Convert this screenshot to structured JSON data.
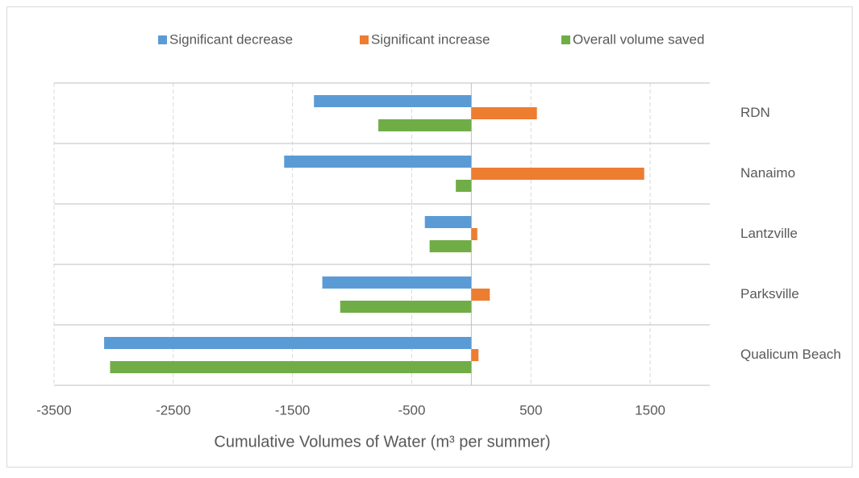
{
  "chart_data": {
    "type": "hbar",
    "x_label": "Cumulative Volumes of Water (m³ per summer)",
    "categories": [
      "RDN",
      "Nanaimo",
      "Lantzville",
      "Parksville",
      "Qualicum Beach"
    ],
    "series": [
      {
        "name": "Significant decrease",
        "color": "#5b9bd5",
        "values": [
          -1320,
          -1570,
          -390,
          -1250,
          -3080
        ]
      },
      {
        "name": "Significant increase",
        "color": "#ed7d31",
        "values": [
          550,
          1450,
          50,
          155,
          60
        ]
      },
      {
        "name": "Overall volume saved",
        "color": "#70ad47",
        "values": [
          -780,
          -130,
          -350,
          -1100,
          -3030
        ]
      }
    ],
    "xlim": [
      -3500,
      2000
    ],
    "xticks": [
      -3500,
      -2500,
      -1500,
      -500,
      500,
      1500
    ],
    "grid": true,
    "legend": "top"
  }
}
